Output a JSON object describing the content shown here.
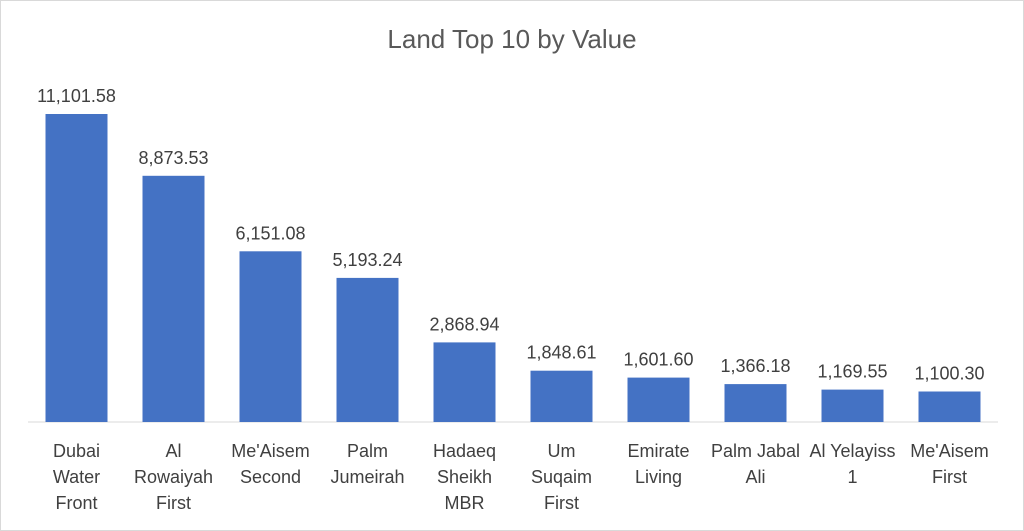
{
  "chart_data": {
    "type": "bar",
    "title": "Land Top 10 by Value",
    "categories": [
      [
        "Dubai",
        "Water",
        "Front"
      ],
      [
        "Al",
        "Rowaiyah",
        "First"
      ],
      [
        "Me'Aisem",
        "Second"
      ],
      [
        "Palm",
        "Jumeirah"
      ],
      [
        "Hadaeq",
        "Sheikh",
        "MBR"
      ],
      [
        "Um",
        "Suqaim",
        "First"
      ],
      [
        "Emirate",
        "Living"
      ],
      [
        "Palm Jabal",
        "Ali"
      ],
      [
        "Al Yelayiss",
        "1"
      ],
      [
        "Me'Aisem",
        "First"
      ]
    ],
    "values": [
      11101.58,
      8873.53,
      6151.08,
      5193.24,
      2868.94,
      1848.61,
      1601.6,
      1366.18,
      1169.55,
      1100.3
    ],
    "value_labels": [
      "11,101.58",
      "8,873.53",
      "6,151.08",
      "5,193.24",
      "2,868.94",
      "1,848.61",
      "1,601.60",
      "1,366.18",
      "1,169.55",
      "1,100.30"
    ],
    "xlabel": "",
    "ylabel": "",
    "ylim": [
      0,
      11101.58
    ],
    "bar_color": "#4472c4",
    "axis_color": "#d9d9d9",
    "grid": false,
    "legend": "none"
  }
}
